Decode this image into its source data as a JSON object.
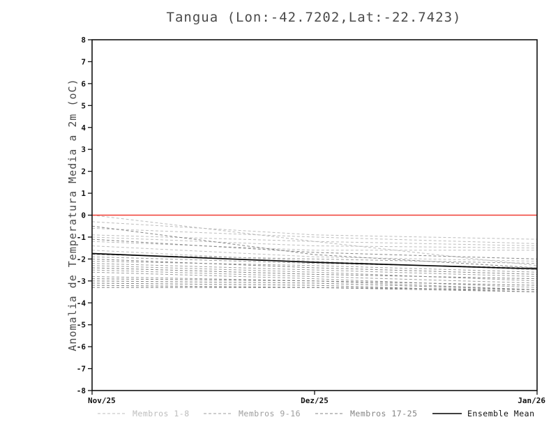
{
  "chart_data": {
    "type": "line",
    "title": "Tangua (Lon:-42.7202,Lat:-22.7423)",
    "ylabel": "Anomalia de Temperatura Media a 2m (oC)",
    "xlabel": "",
    "x": [
      0,
      1,
      2
    ],
    "x_tick_labels": [
      "Nov/25",
      "Dez/25",
      "Jan/26"
    ],
    "ylim": [
      -8,
      8
    ],
    "y_tick_step": 1,
    "grid": false,
    "zero_line_color": "#f03c32",
    "legend_position": "bottom",
    "groups": [
      {
        "name": "Membros 1-8",
        "color": "#bdbdbd",
        "style": "dashed",
        "members": [
          [
            0.0,
            -1.2,
            -2.3
          ],
          [
            -0.3,
            -0.9,
            -1.1
          ],
          [
            -0.6,
            -1.0,
            -1.3
          ],
          [
            -0.9,
            -1.2,
            -1.4
          ],
          [
            -1.0,
            -1.4,
            -1.5
          ],
          [
            -1.2,
            -1.6,
            -1.6
          ],
          [
            -1.4,
            -1.9,
            -2.1
          ],
          [
            -1.6,
            -2.1,
            -2.5
          ]
        ]
      },
      {
        "name": "Membros 9-16",
        "color": "#9e9e9e",
        "style": "dashed",
        "members": [
          [
            -1.8,
            -2.0,
            -2.2
          ],
          [
            -1.9,
            -2.2,
            -2.4
          ],
          [
            -2.1,
            -2.3,
            -2.6
          ],
          [
            -2.2,
            -2.5,
            -2.8
          ],
          [
            -2.3,
            -2.6,
            -3.0
          ],
          [
            -2.5,
            -2.8,
            -3.1
          ],
          [
            -2.6,
            -2.9,
            -3.3
          ],
          [
            -2.8,
            -3.0,
            -3.4
          ]
        ]
      },
      {
        "name": "Membros 17-25",
        "color": "#858585",
        "style": "dashed",
        "members": [
          [
            -2.9,
            -3.0,
            -3.2
          ],
          [
            -3.0,
            -3.1,
            -3.4
          ],
          [
            -3.1,
            -3.2,
            -3.5
          ],
          [
            -3.2,
            -3.3,
            -3.4
          ],
          [
            -3.3,
            -3.3,
            -3.5
          ],
          [
            -2.4,
            -2.7,
            -2.9
          ],
          [
            -2.0,
            -2.4,
            -2.7
          ],
          [
            -1.1,
            -1.7,
            -2.0
          ],
          [
            -0.5,
            -1.8,
            -2.4
          ]
        ]
      },
      {
        "name": "Ensemble Mean",
        "color": "#000000",
        "style": "solid",
        "members": [
          [
            -1.75,
            -2.15,
            -2.45
          ]
        ]
      }
    ]
  }
}
